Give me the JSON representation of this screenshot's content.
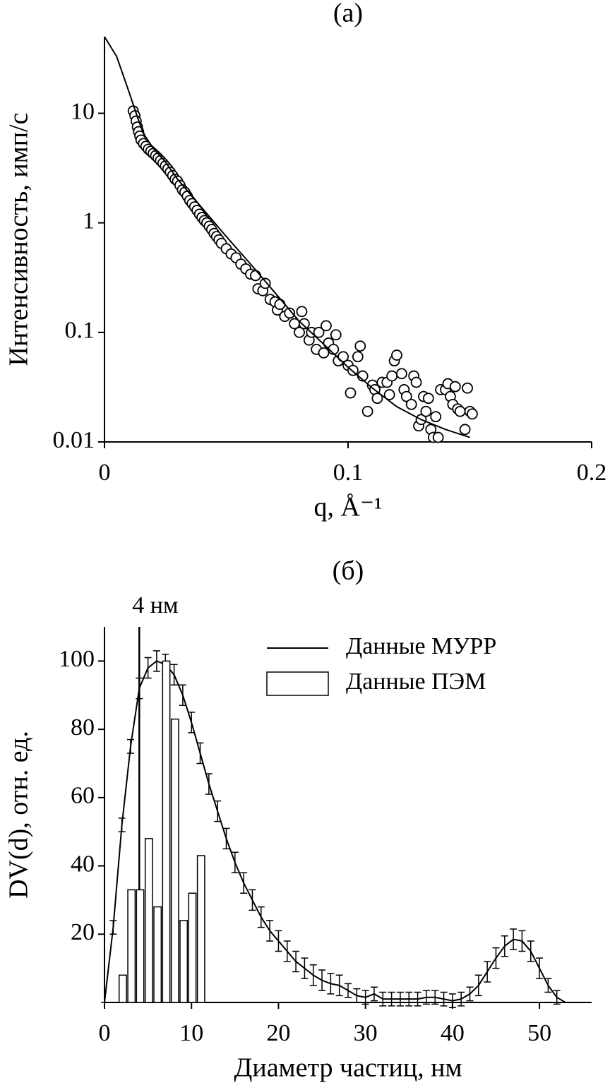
{
  "chart_data": [
    {
      "type": "scatter",
      "title": "(a)",
      "xlabel": "q, Å⁻¹",
      "ylabel": "Интенсивность, имп/с",
      "xlim": [
        0,
        0.2
      ],
      "xticks": [
        0,
        0.1,
        0.2
      ],
      "ylim": [
        0.01,
        50
      ],
      "yticks": [
        10,
        1,
        0.1,
        0.01
      ],
      "log_y": true,
      "grid": false,
      "series": [
        {
          "type": "scatter",
          "color": "#000000",
          "x": [
            0.0118,
            0.0125,
            0.013,
            0.0135,
            0.014,
            0.0145,
            0.015,
            0.016,
            0.017,
            0.018,
            0.019,
            0.02,
            0.021,
            0.022,
            0.023,
            0.024,
            0.025,
            0.026,
            0.027,
            0.028,
            0.029,
            0.03,
            0.031,
            0.032,
            0.033,
            0.034,
            0.035,
            0.036,
            0.037,
            0.038,
            0.039,
            0.04,
            0.041,
            0.042,
            0.043,
            0.044,
            0.045,
            0.046,
            0.047,
            0.048,
            0.05,
            0.052,
            0.054,
            0.056,
            0.058,
            0.06,
            0.062,
            0.063,
            0.065,
            0.066,
            0.068,
            0.07,
            0.071,
            0.072,
            0.074,
            0.076,
            0.078,
            0.08,
            0.081,
            0.082,
            0.084,
            0.085,
            0.087,
            0.088,
            0.09,
            0.091,
            0.092,
            0.094,
            0.095,
            0.096,
            0.098,
            0.1,
            0.101,
            0.102,
            0.104,
            0.105,
            0.106,
            0.108,
            0.11,
            0.111,
            0.112,
            0.114,
            0.116,
            0.117,
            0.118,
            0.119,
            0.12,
            0.122,
            0.123,
            0.124,
            0.126,
            0.127,
            0.128,
            0.129,
            0.13,
            0.131,
            0.132,
            0.133,
            0.134,
            0.135,
            0.136,
            0.137,
            0.138,
            0.14,
            0.141,
            0.142,
            0.143,
            0.144,
            0.145,
            0.146,
            0.148,
            0.149,
            0.15,
            0.151
          ],
          "values": [
            10.5,
            9.5,
            8.5,
            7.5,
            6.8,
            6.2,
            5.7,
            5.3,
            5.0,
            4.7,
            4.5,
            4.3,
            4.1,
            3.9,
            3.7,
            3.5,
            3.3,
            3.1,
            2.9,
            2.7,
            2.5,
            2.4,
            2.2,
            2.0,
            1.9,
            1.75,
            1.6,
            1.5,
            1.4,
            1.3,
            1.2,
            1.12,
            1.05,
            1.0,
            0.93,
            0.87,
            0.8,
            0.75,
            0.7,
            0.65,
            0.58,
            0.52,
            0.48,
            0.42,
            0.38,
            0.34,
            0.33,
            0.25,
            0.24,
            0.28,
            0.2,
            0.19,
            0.16,
            0.18,
            0.14,
            0.15,
            0.12,
            0.1,
            0.155,
            0.12,
            0.085,
            0.1,
            0.07,
            0.1,
            0.065,
            0.115,
            0.08,
            0.07,
            0.095,
            0.055,
            0.06,
            0.05,
            0.028,
            0.045,
            0.06,
            0.075,
            0.04,
            0.019,
            0.033,
            0.03,
            0.025,
            0.035,
            0.035,
            0.027,
            0.04,
            0.055,
            0.062,
            0.042,
            0.03,
            0.026,
            0.022,
            0.04,
            0.035,
            0.014,
            0.016,
            0.026,
            0.019,
            0.025,
            0.013,
            0.011,
            0.017,
            0.011,
            0.03,
            0.03,
            0.034,
            0.026,
            0.022,
            0.032,
            0.02,
            0.019,
            0.013,
            0.031,
            0.019,
            0.018
          ]
        },
        {
          "type": "line",
          "color": "#000000",
          "x": [
            0,
            0.005,
            0.01,
            0.013,
            0.016,
            0.02,
            0.025,
            0.03,
            0.04,
            0.05,
            0.06,
            0.07,
            0.08,
            0.09,
            0.1,
            0.11,
            0.12,
            0.13,
            0.14,
            0.15
          ],
          "values": [
            50,
            33,
            15.8,
            10,
            6.5,
            4.8,
            3.6,
            2.5,
            1.37,
            0.75,
            0.42,
            0.23,
            0.126,
            0.078,
            0.048,
            0.031,
            0.021,
            0.016,
            0.013,
            0.011
          ]
        }
      ]
    },
    {
      "type": "line",
      "title": "(б)",
      "xlabel": "Диаметр частиц, нм",
      "ylabel": "DV(d), отн. ед.",
      "xlim": [
        0,
        56
      ],
      "xticks": [
        0,
        10,
        20,
        30,
        40,
        50
      ],
      "ylim": [
        0,
        110
      ],
      "yticks": [
        20,
        40,
        60,
        80,
        100
      ],
      "grid": false,
      "legend": "upper right",
      "annotations": [
        {
          "text": "4 нм",
          "x": 4
        }
      ],
      "series": [
        {
          "name": "Данные МУРР",
          "type": "line",
          "color": "#000000",
          "x": [
            0,
            1,
            2,
            3,
            4,
            5,
            6,
            7,
            8,
            9,
            10,
            11,
            12,
            13,
            14,
            15,
            16,
            17,
            18,
            19,
            20,
            21,
            22,
            23,
            24,
            25,
            26,
            27,
            28,
            29,
            30,
            31,
            32,
            33,
            34,
            35,
            36,
            37,
            38,
            39,
            40,
            41,
            42,
            43,
            44,
            45,
            46,
            47,
            48,
            49,
            50,
            51,
            52,
            53
          ],
          "values": [
            0,
            22,
            52,
            75,
            92,
            98,
            100,
            99,
            96,
            90,
            82,
            73,
            64,
            56,
            48,
            41,
            35,
            30,
            25,
            21,
            18,
            15,
            12,
            10,
            8,
            6.5,
            5.5,
            5,
            3.5,
            2,
            1.5,
            2.5,
            1,
            1,
            1,
            1,
            1,
            1.5,
            1.5,
            1,
            0.5,
            1,
            2.5,
            5,
            9,
            13,
            16.5,
            18.5,
            18,
            15,
            10,
            5,
            1.5,
            0
          ],
          "errors": [
            0,
            2,
            2,
            2,
            3,
            3,
            3,
            3,
            3,
            3,
            3,
            3,
            3,
            3,
            3,
            3,
            3,
            3,
            3,
            3,
            3,
            3,
            3,
            3,
            3,
            3,
            3,
            3,
            2,
            2,
            2,
            2,
            2,
            2,
            2,
            2,
            2,
            2,
            2,
            2,
            2,
            2,
            2,
            3,
            3,
            3,
            3,
            3,
            3,
            3,
            3,
            2,
            2,
            0
          ]
        },
        {
          "name": "Данные ПЭМ",
          "type": "histogram",
          "color": "#ffffff",
          "bins": [
            1.6,
            2.6,
            3.6,
            4.6,
            5.6,
            6.6,
            7.6,
            8.6,
            9.6,
            10.6,
            11.6
          ],
          "values": [
            8,
            33,
            33,
            48,
            28,
            100,
            83,
            24,
            32,
            43
          ]
        }
      ]
    }
  ]
}
